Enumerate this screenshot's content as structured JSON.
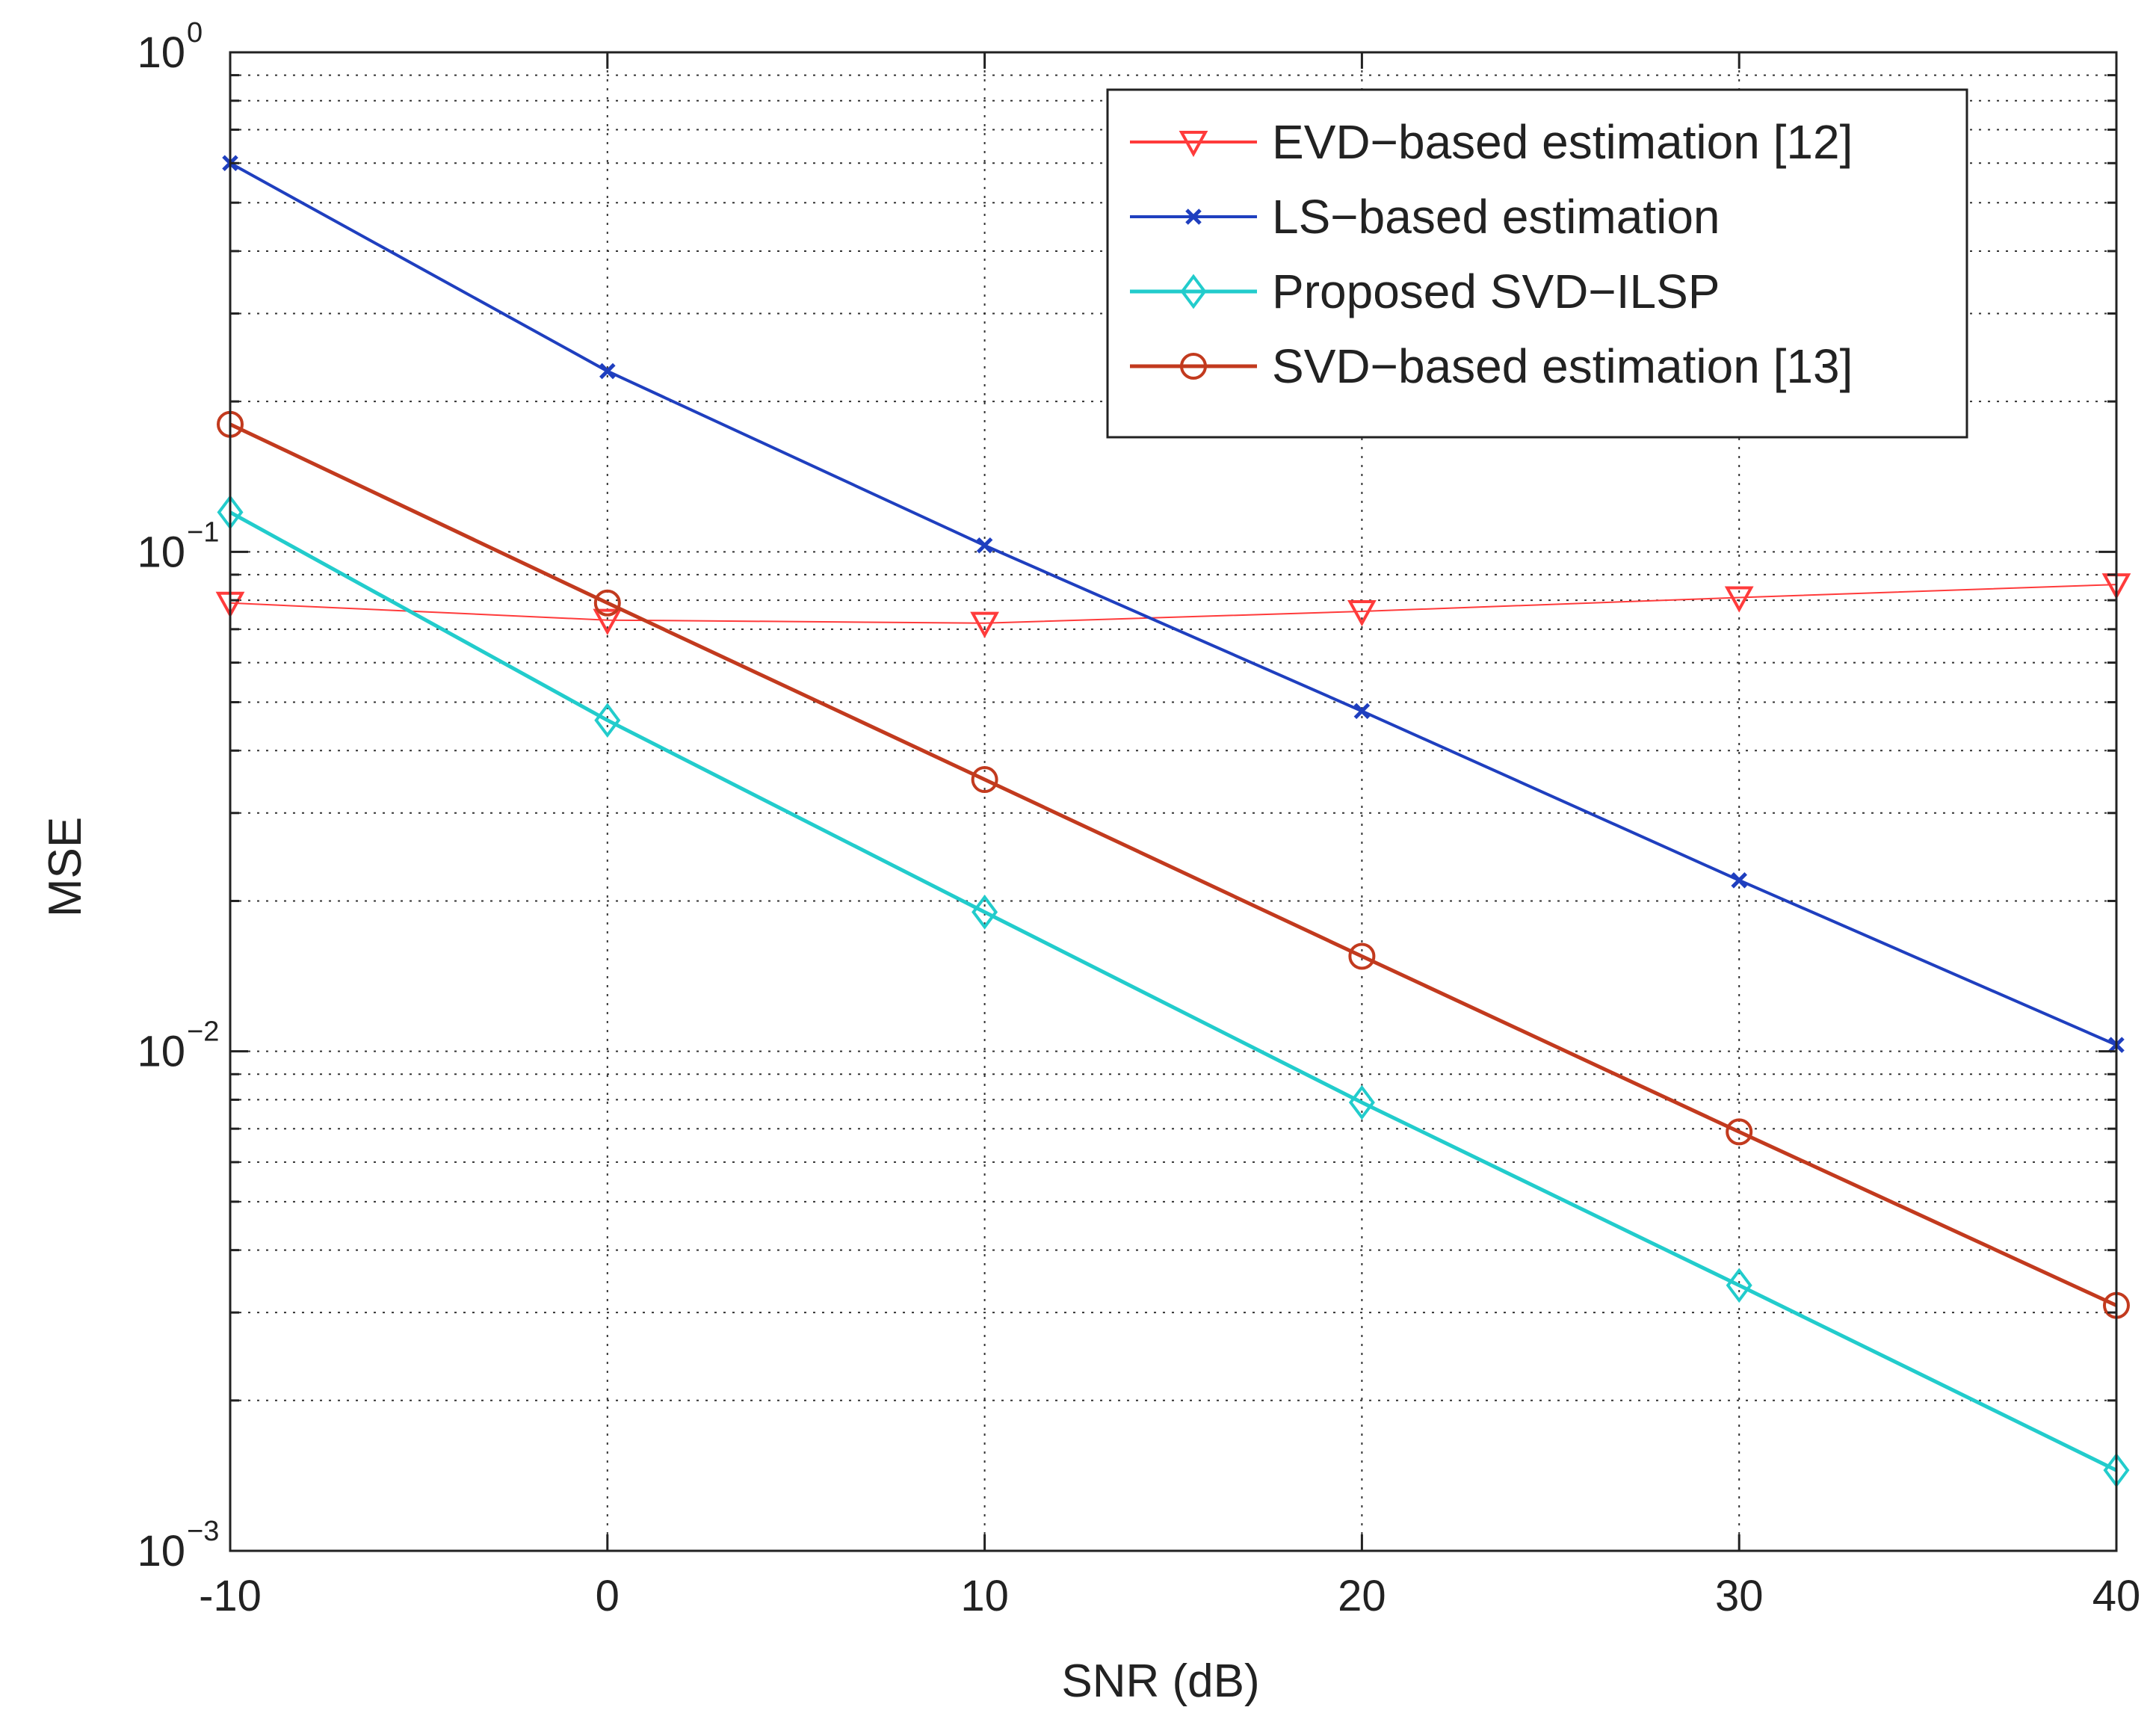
{
  "chart_data": {
    "type": "line",
    "title": "",
    "xlabel": "SNR (dB)",
    "ylabel": "MSE",
    "yscale": "log",
    "xlim": [
      -10,
      40
    ],
    "ylim": [
      0.001,
      1
    ],
    "grid": true,
    "legend_position": "top-right",
    "x": [
      -10,
      0,
      10,
      20,
      30,
      40
    ],
    "x_tick_labels": [
      "-10",
      "0",
      "10",
      "20",
      "30",
      "40"
    ],
    "y_ticks": [
      {
        "value": 1,
        "base": "10",
        "exp": "0"
      },
      {
        "value": 0.1,
        "base": "10",
        "exp": "−1"
      },
      {
        "value": 0.01,
        "base": "10",
        "exp": "−2"
      },
      {
        "value": 0.001,
        "base": "10",
        "exp": "−3"
      }
    ],
    "series": [
      {
        "name": "EVD−based estimation [12]",
        "marker": "triangle-down",
        "color": "#ff3b3b",
        "line_width": 2,
        "values": [
          0.079,
          0.073,
          0.072,
          0.076,
          0.081,
          0.086
        ]
      },
      {
        "name": "LS−based estimation",
        "marker": "x",
        "color": "#1f3fbf",
        "line_width": 4,
        "values": [
          0.6,
          0.23,
          0.103,
          0.048,
          0.022,
          0.0103
        ]
      },
      {
        "name": "Proposed SVD−ILSP",
        "marker": "diamond",
        "color": "#22cccc",
        "line_width": 5,
        "values": [
          0.12,
          0.046,
          0.019,
          0.0079,
          0.0034,
          0.00145
        ]
      },
      {
        "name": "SVD−based estimation [13]",
        "marker": "circle",
        "color": "#c23a1e",
        "line_width": 5,
        "values": [
          0.18,
          0.079,
          0.035,
          0.0155,
          0.0069,
          0.0031
        ]
      }
    ]
  }
}
